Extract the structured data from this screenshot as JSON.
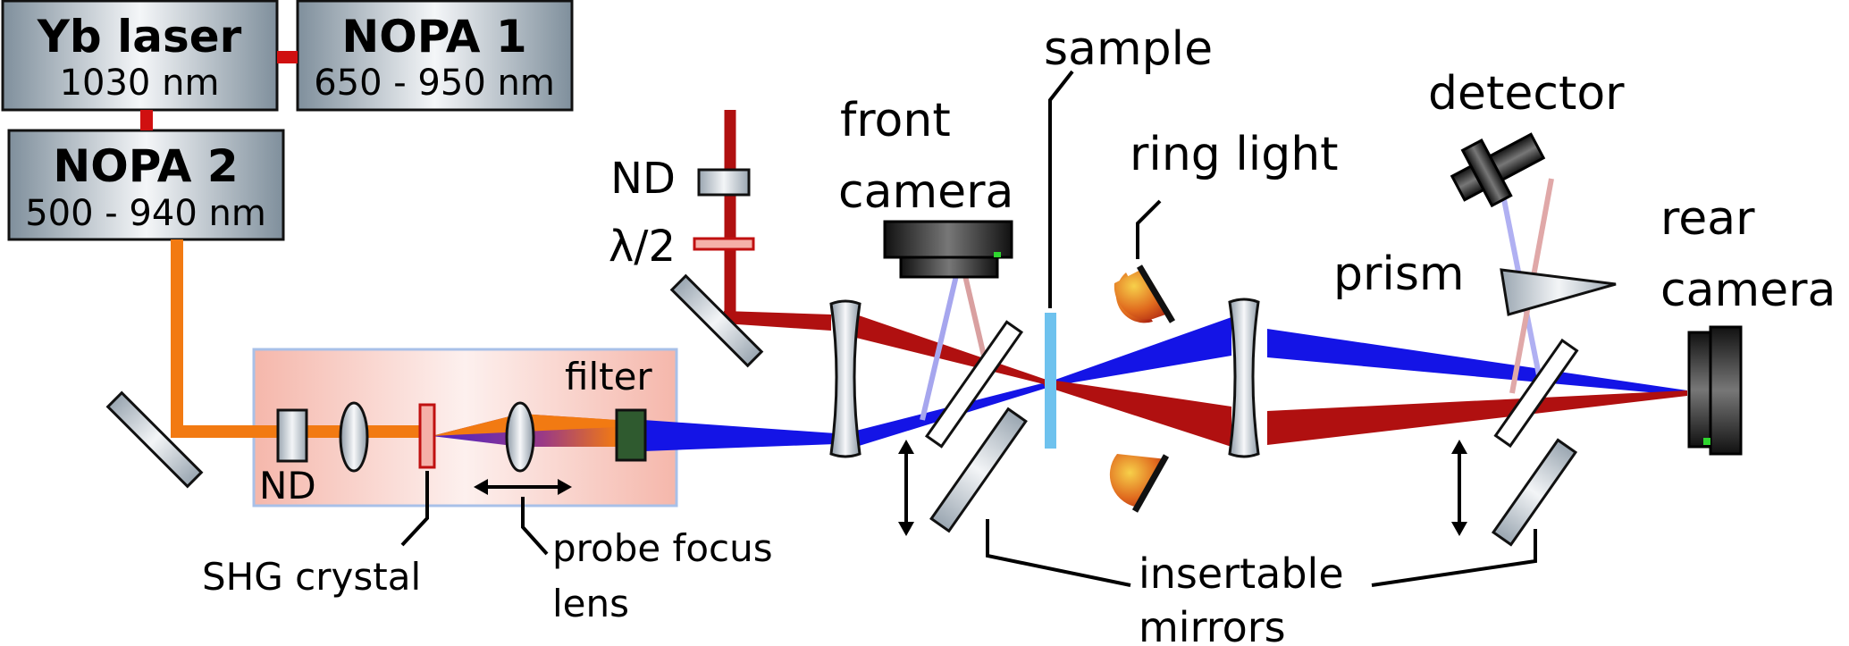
{
  "boxes": {
    "yb_laser": {
      "title": "Yb laser",
      "subtitle": "1030 nm"
    },
    "nopa1": {
      "title": "NOPA 1",
      "subtitle": "650 - 950 nm"
    },
    "nopa2": {
      "title": "NOPA 2",
      "subtitle": "500 - 940 nm"
    }
  },
  "labels": {
    "nd_top": "ND",
    "half_wave": "λ/2",
    "nd_bottom": "ND",
    "filter": "filter",
    "shg_crystal": "SHG crystal",
    "probe_focus_line1": "probe focus",
    "probe_focus_line2": "lens",
    "front_camera_line1": "front",
    "front_camera_line2": "camera",
    "sample": "sample",
    "ring_light": "ring light",
    "detector": "detector",
    "prism": "prism",
    "rear_camera_line1": "rear",
    "rear_camera_line2": "camera",
    "insertable_line1": "insertable",
    "insertable_line2": "mirrors"
  },
  "colors": {
    "pump_red": "#b01010",
    "probe_blue": "#1010e6",
    "orange": "#f27a12",
    "sample_blue": "#6ec2ee",
    "filter_green": "#2f5a2f",
    "box_steel": "#8a9aa8",
    "shg_region": "#f6c0b4"
  }
}
